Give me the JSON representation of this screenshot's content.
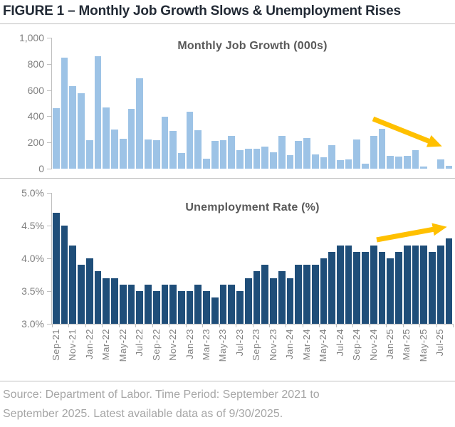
{
  "figure_title": "FIGURE 1 – Monthly Job Growth Slows & Unemployment Rises",
  "source_line1": "Source: Department of Labor. Time Period: September 2021 to",
  "source_line2": "September 2025. Latest available data as of 9/30/2025.",
  "colors": {
    "job_growth_bar": "#9DC3E6",
    "unemployment_bar": "#1F4E79",
    "trend_arrow": "#FFC000",
    "axis_text": "#808080",
    "chart_title_text": "#595959",
    "figure_title_text": "#222A35",
    "source_text": "#A6A6A6",
    "divider": "#BFBFBF"
  },
  "categories": [
    "Sep-21",
    "Oct-21",
    "Nov-21",
    "Dec-21",
    "Jan-22",
    "Feb-22",
    "Mar-22",
    "Apr-22",
    "May-22",
    "Jun-22",
    "Jul-22",
    "Aug-22",
    "Sep-22",
    "Oct-22",
    "Nov-22",
    "Dec-22",
    "Jan-23",
    "Feb-23",
    "Mar-23",
    "Apr-23",
    "May-23",
    "Jun-23",
    "Jul-23",
    "Aug-23",
    "Sep-23",
    "Oct-23",
    "Nov-23",
    "Dec-23",
    "Jan-24",
    "Feb-24",
    "Mar-24",
    "Apr-24",
    "May-24",
    "Jun-24",
    "Jul-24",
    "Aug-24",
    "Sep-24",
    "Oct-24",
    "Nov-24",
    "Dec-24",
    "Jan-25",
    "Feb-25",
    "Mar-25",
    "Apr-25",
    "May-25",
    "Jun-25",
    "Jul-25",
    "Aug-25"
  ],
  "x_label_every": 2,
  "chart_data": [
    {
      "type": "bar",
      "title": "Monthly Job Growth (000s)",
      "bar_color": "#9DC3E6",
      "ylim": [
        0,
        1000
      ],
      "yticks": [
        {
          "label": "1,000",
          "value": 1000
        },
        {
          "label": "800",
          "value": 800
        },
        {
          "label": "600",
          "value": 600
        },
        {
          "label": "400",
          "value": 400
        },
        {
          "label": "200",
          "value": 200
        },
        {
          "label": "0",
          "value": 0
        }
      ],
      "values": [
        460,
        850,
        630,
        575,
        220,
        860,
        465,
        300,
        230,
        455,
        690,
        225,
        215,
        395,
        290,
        120,
        435,
        295,
        75,
        210,
        220,
        250,
        140,
        150,
        155,
        170,
        125,
        250,
        105,
        210,
        235,
        110,
        85,
        180,
        65,
        70,
        225,
        40,
        250,
        305,
        100,
        90,
        100,
        140,
        15,
        0,
        73,
        22
      ],
      "annotation": "declining-trend-arrow",
      "arrow_color": "#FFC000"
    },
    {
      "type": "bar",
      "title": "Unemployment Rate (%)",
      "bar_color": "#1F4E79",
      "ylim": [
        3.0,
        5.0
      ],
      "yticks": [
        {
          "label": "5.0%",
          "value": 5.0
        },
        {
          "label": "4.5%",
          "value": 4.5
        },
        {
          "label": "4.0%",
          "value": 4.0
        },
        {
          "label": "3.5%",
          "value": 3.5
        },
        {
          "label": "3.0%",
          "value": 3.0
        }
      ],
      "values": [
        4.7,
        4.5,
        4.2,
        3.9,
        4.0,
        3.8,
        3.7,
        3.7,
        3.6,
        3.6,
        3.5,
        3.6,
        3.5,
        3.6,
        3.6,
        3.5,
        3.5,
        3.6,
        3.5,
        3.4,
        3.6,
        3.6,
        3.5,
        3.7,
        3.8,
        3.9,
        3.7,
        3.8,
        3.7,
        3.9,
        3.9,
        3.9,
        4.0,
        4.1,
        4.2,
        4.2,
        4.1,
        4.1,
        4.2,
        4.1,
        4.0,
        4.1,
        4.2,
        4.2,
        4.2,
        4.1,
        4.2,
        4.3
      ],
      "annotation": "rising-trend-arrow",
      "arrow_color": "#FFC000"
    }
  ]
}
